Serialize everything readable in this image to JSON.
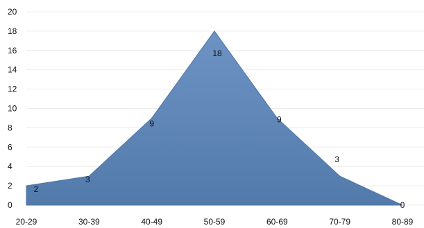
{
  "chart_data": {
    "type": "area",
    "categories": [
      "20-29",
      "30-39",
      "40-49",
      "50-59",
      "60-69",
      "70-79",
      "80-89"
    ],
    "values": [
      2,
      3,
      9,
      18,
      9,
      3,
      0
    ],
    "data_labels": [
      "2",
      "3",
      "9",
      "18",
      "9",
      "3",
      "0"
    ],
    "y_ticks": [
      "0",
      "2",
      "4",
      "6",
      "8",
      "10",
      "12",
      "14",
      "16",
      "18",
      "20"
    ],
    "ylim": [
      0,
      20
    ],
    "grid": true,
    "legend": "none",
    "fill_color": "#5f88ba",
    "fill_gradient_top": "#6c93c4",
    "fill_gradient_bottom": "#527aaa",
    "edge_color": "#4f76a7"
  }
}
